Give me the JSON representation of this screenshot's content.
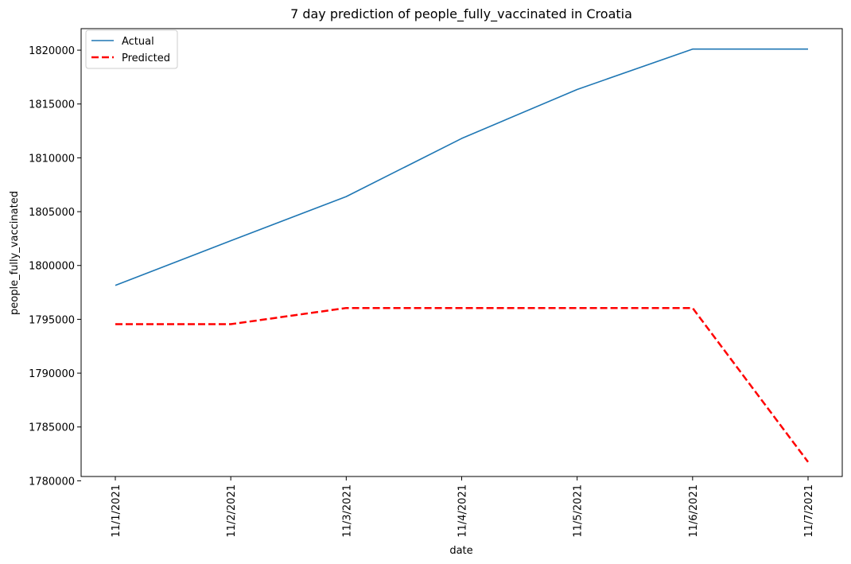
{
  "chart_data": {
    "type": "line",
    "title": "7 day prediction of people_fully_vaccinated in Croatia",
    "xlabel": "date",
    "ylabel": "people_fully_vaccinated",
    "categories": [
      "11/1/2021",
      "11/2/2021",
      "11/3/2021",
      "11/4/2021",
      "11/5/2021",
      "11/6/2021",
      "11/7/2021"
    ],
    "series": [
      {
        "name": "Actual",
        "color": "#1f77b4",
        "style": "solid",
        "values": [
          1798150,
          1802300,
          1806400,
          1811800,
          1816350,
          1820100,
          1820100
        ]
      },
      {
        "name": "Predicted",
        "color": "#ff0000",
        "style": "dashed",
        "values": [
          1794550,
          1794550,
          1796050,
          1796050,
          1796050,
          1796050,
          1781750
        ]
      }
    ],
    "yticks": [
      1780000,
      1785000,
      1790000,
      1795000,
      1800000,
      1805000,
      1810000,
      1815000,
      1820000
    ],
    "ylim": [
      1780400,
      1822000
    ],
    "grid": false,
    "legend": "top-left"
  }
}
